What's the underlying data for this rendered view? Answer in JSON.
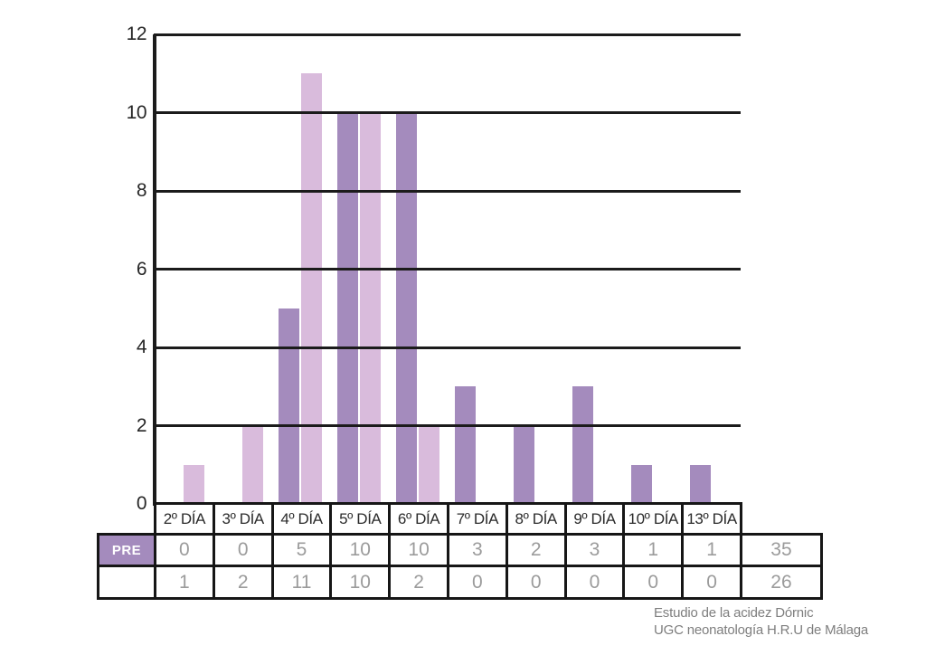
{
  "chart_data": {
    "type": "bar",
    "title": "",
    "xlabel": "",
    "ylabel": "",
    "categories": [
      "2º DÍA",
      "3º DÍA",
      "4º DÍA",
      "5º DÍA",
      "6º DÍA",
      "7º DÍA",
      "8º DÍA",
      "9º DÍA",
      "10º DÍA",
      "13º DÍA"
    ],
    "series": [
      {
        "name": "PRE",
        "values": [
          0,
          0,
          5,
          10,
          10,
          3,
          2,
          3,
          1,
          1
        ],
        "total": 35,
        "color": "#a48bbd"
      },
      {
        "name": "",
        "values": [
          1,
          2,
          11,
          10,
          2,
          0,
          0,
          0,
          0,
          0
        ],
        "total": 26,
        "color": "#d9bbdc"
      }
    ],
    "ylim": [
      0,
      12
    ],
    "yticks": [
      0,
      2,
      4,
      6,
      8,
      10,
      12
    ],
    "grid": "horizontal",
    "legend_position": "none"
  },
  "colors": {
    "bar_pre": "#a48bbd",
    "bar_second": "#d9bbdc",
    "grid_line": "#1b1b1b",
    "table_border": "#161616",
    "value_text": "#9b9b9b",
    "header_text": "#2b2b2b",
    "pre_label_bg": "#a48bbd",
    "pre_label_text": "#ffffff",
    "caption_text": "#7e7e7e"
  },
  "caption": {
    "line1": "Estudio de la acidez Dórnic",
    "line2": "UGC neonatología H.R.U de Málaga"
  }
}
